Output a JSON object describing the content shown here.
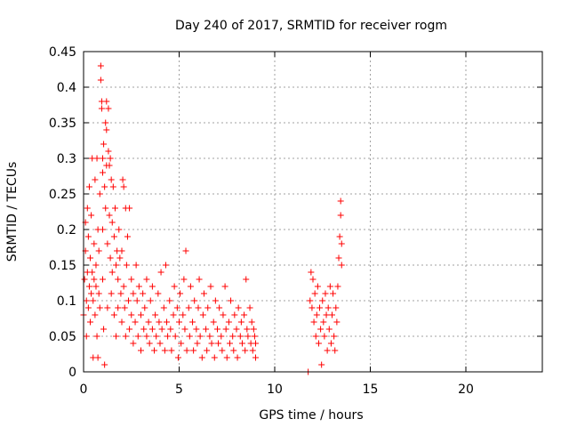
{
  "chart_data": {
    "type": "scatter",
    "title": "Day 240 of 2017, SRMTID for receiver rogm",
    "xlabel": "GPS time / hours",
    "ylabel": "SRMTID / TECUs",
    "xlim": [
      0,
      24
    ],
    "ylim": [
      0,
      0.45
    ],
    "grid": true,
    "marker": "+",
    "series_color": "#ff0000",
    "x_ticks": [
      0,
      5,
      10,
      15,
      20
    ],
    "x_tick_labels": [
      "0",
      "5",
      "10",
      "15",
      "20"
    ],
    "y_ticks": [
      0,
      0.05,
      0.1,
      0.15,
      0.2,
      0.25,
      0.3,
      0.35,
      0.4,
      0.45
    ],
    "y_tick_labels": [
      "0",
      "0.05",
      "0.1",
      "0.15",
      "0.2",
      "0.25",
      "0.3",
      "0.35",
      "0.4",
      "0.45"
    ],
    "series": [
      {
        "name": "SRMTID",
        "points": [
          [
            0.0,
            0.08
          ],
          [
            0.05,
            0.13
          ],
          [
            0.1,
            0.21
          ],
          [
            0.1,
            0.17
          ],
          [
            0.15,
            0.1
          ],
          [
            0.15,
            0.05
          ],
          [
            0.2,
            0.23
          ],
          [
            0.2,
            0.14
          ],
          [
            0.25,
            0.19
          ],
          [
            0.25,
            0.09
          ],
          [
            0.3,
            0.26
          ],
          [
            0.3,
            0.12
          ],
          [
            0.35,
            0.07
          ],
          [
            0.35,
            0.16
          ],
          [
            0.4,
            0.11
          ],
          [
            0.4,
            0.22
          ],
          [
            0.45,
            0.3
          ],
          [
            0.45,
            0.14
          ],
          [
            0.5,
            0.02
          ],
          [
            0.5,
            0.1
          ],
          [
            0.55,
            0.18
          ],
          [
            0.55,
            0.13
          ],
          [
            0.6,
            0.27
          ],
          [
            0.6,
            0.08
          ],
          [
            0.65,
            0.15
          ],
          [
            0.65,
            0.12
          ],
          [
            0.7,
            0.3
          ],
          [
            0.7,
            0.05
          ],
          [
            0.75,
            0.02
          ],
          [
            0.75,
            0.2
          ],
          [
            0.8,
            0.17
          ],
          [
            0.8,
            0.11
          ],
          [
            0.85,
            0.25
          ],
          [
            0.85,
            0.09
          ],
          [
            0.9,
            0.43
          ],
          [
            0.9,
            0.41
          ],
          [
            0.95,
            0.38
          ],
          [
            0.95,
            0.37
          ],
          [
            1.0,
            0.3
          ],
          [
            1.0,
            0.28
          ],
          [
            1.0,
            0.2
          ],
          [
            1.0,
            0.13
          ],
          [
            1.05,
            0.32
          ],
          [
            1.05,
            0.06
          ],
          [
            1.1,
            0.26
          ],
          [
            1.1,
            0.01
          ],
          [
            1.15,
            0.35
          ],
          [
            1.15,
            0.23
          ],
          [
            1.2,
            0.38
          ],
          [
            1.2,
            0.34
          ],
          [
            1.2,
            0.29
          ],
          [
            1.25,
            0.18
          ],
          [
            1.25,
            0.09
          ],
          [
            1.3,
            0.37
          ],
          [
            1.3,
            0.31
          ],
          [
            1.35,
            0.29
          ],
          [
            1.35,
            0.22
          ],
          [
            1.4,
            0.3
          ],
          [
            1.4,
            0.16
          ],
          [
            1.45,
            0.27
          ],
          [
            1.45,
            0.11
          ],
          [
            1.5,
            0.21
          ],
          [
            1.5,
            0.14
          ],
          [
            1.55,
            0.26
          ],
          [
            1.6,
            0.19
          ],
          [
            1.6,
            0.08
          ],
          [
            1.65,
            0.23
          ],
          [
            1.7,
            0.15
          ],
          [
            1.7,
            0.05
          ],
          [
            1.75,
            0.17
          ],
          [
            1.8,
            0.13
          ],
          [
            1.8,
            0.09
          ],
          [
            1.85,
            0.2
          ],
          [
            1.9,
            0.16
          ],
          [
            1.95,
            0.11
          ],
          [
            2.0,
            0.07
          ],
          [
            2.0,
            0.17
          ],
          [
            2.05,
            0.27
          ],
          [
            2.1,
            0.26
          ],
          [
            2.1,
            0.12
          ],
          [
            2.15,
            0.09
          ],
          [
            2.2,
            0.23
          ],
          [
            2.2,
            0.05
          ],
          [
            2.25,
            0.15
          ],
          [
            2.3,
            0.19
          ],
          [
            2.35,
            0.1
          ],
          [
            2.4,
            0.23
          ],
          [
            2.4,
            0.06
          ],
          [
            2.5,
            0.08
          ],
          [
            2.5,
            0.13
          ],
          [
            2.6,
            0.04
          ],
          [
            2.6,
            0.11
          ],
          [
            2.7,
            0.07
          ],
          [
            2.75,
            0.15
          ],
          [
            2.8,
            0.1
          ],
          [
            2.85,
            0.05
          ],
          [
            2.9,
            0.12
          ],
          [
            3.0,
            0.08
          ],
          [
            3.0,
            0.03
          ],
          [
            3.1,
            0.11
          ],
          [
            3.15,
            0.06
          ],
          [
            3.2,
            0.09
          ],
          [
            3.3,
            0.05
          ],
          [
            3.3,
            0.13
          ],
          [
            3.4,
            0.07
          ],
          [
            3.45,
            0.04
          ],
          [
            3.5,
            0.1
          ],
          [
            3.6,
            0.06
          ],
          [
            3.6,
            0.12
          ],
          [
            3.7,
            0.03
          ],
          [
            3.75,
            0.08
          ],
          [
            3.8,
            0.05
          ],
          [
            3.9,
            0.11
          ],
          [
            3.95,
            0.07
          ],
          [
            4.0,
            0.04
          ],
          [
            4.05,
            0.14
          ],
          [
            4.1,
            0.06
          ],
          [
            4.2,
            0.09
          ],
          [
            4.25,
            0.03
          ],
          [
            4.3,
            0.15
          ],
          [
            4.35,
            0.07
          ],
          [
            4.4,
            0.05
          ],
          [
            4.5,
            0.1
          ],
          [
            4.55,
            0.06
          ],
          [
            4.6,
            0.03
          ],
          [
            4.7,
            0.08
          ],
          [
            4.75,
            0.12
          ],
          [
            4.8,
            0.05
          ],
          [
            4.9,
            0.09
          ],
          [
            4.95,
            0.02
          ],
          [
            5.0,
            0.07
          ],
          [
            5.05,
            0.11
          ],
          [
            5.1,
            0.04
          ],
          [
            5.2,
            0.08
          ],
          [
            5.25,
            0.13
          ],
          [
            5.3,
            0.06
          ],
          [
            5.35,
            0.17
          ],
          [
            5.4,
            0.03
          ],
          [
            5.5,
            0.09
          ],
          [
            5.55,
            0.05
          ],
          [
            5.6,
            0.12
          ],
          [
            5.7,
            0.07
          ],
          [
            5.75,
            0.03
          ],
          [
            5.8,
            0.1
          ],
          [
            5.9,
            0.06
          ],
          [
            5.95,
            0.04
          ],
          [
            6.0,
            0.09
          ],
          [
            6.05,
            0.13
          ],
          [
            6.1,
            0.05
          ],
          [
            6.2,
            0.02
          ],
          [
            6.25,
            0.08
          ],
          [
            6.3,
            0.11
          ],
          [
            6.4,
            0.06
          ],
          [
            6.45,
            0.03
          ],
          [
            6.5,
            0.09
          ],
          [
            6.6,
            0.05
          ],
          [
            6.65,
            0.12
          ],
          [
            6.7,
            0.04
          ],
          [
            6.8,
            0.07
          ],
          [
            6.85,
            0.02
          ],
          [
            6.9,
            0.1
          ],
          [
            7.0,
            0.06
          ],
          [
            7.05,
            0.04
          ],
          [
            7.1,
            0.09
          ],
          [
            7.2,
            0.05
          ],
          [
            7.25,
            0.03
          ],
          [
            7.3,
            0.08
          ],
          [
            7.4,
            0.12
          ],
          [
            7.45,
            0.06
          ],
          [
            7.5,
            0.02
          ],
          [
            7.6,
            0.07
          ],
          [
            7.65,
            0.04
          ],
          [
            7.7,
            0.1
          ],
          [
            7.8,
            0.05
          ],
          [
            7.85,
            0.03
          ],
          [
            7.9,
            0.08
          ],
          [
            8.0,
            0.06
          ],
          [
            8.05,
            0.02
          ],
          [
            8.1,
            0.09
          ],
          [
            8.2,
            0.05
          ],
          [
            8.25,
            0.07
          ],
          [
            8.3,
            0.04
          ],
          [
            8.4,
            0.08
          ],
          [
            8.45,
            0.03
          ],
          [
            8.5,
            0.13
          ],
          [
            8.55,
            0.06
          ],
          [
            8.6,
            0.05
          ],
          [
            8.7,
            0.09
          ],
          [
            8.75,
            0.04
          ],
          [
            8.8,
            0.07
          ],
          [
            8.85,
            0.03
          ],
          [
            8.9,
            0.06
          ],
          [
            8.95,
            0.05
          ],
          [
            9.0,
            0.04
          ],
          [
            9.0,
            0.02
          ],
          [
            11.75,
            0.0
          ],
          [
            11.85,
            0.1
          ],
          [
            11.9,
            0.14
          ],
          [
            11.95,
            0.09
          ],
          [
            12.0,
            0.13
          ],
          [
            12.05,
            0.07
          ],
          [
            12.1,
            0.11
          ],
          [
            12.15,
            0.05
          ],
          [
            12.2,
            0.08
          ],
          [
            12.25,
            0.12
          ],
          [
            12.3,
            0.04
          ],
          [
            12.35,
            0.09
          ],
          [
            12.4,
            0.06
          ],
          [
            12.45,
            0.01
          ],
          [
            12.5,
            0.1
          ],
          [
            12.55,
            0.07
          ],
          [
            12.6,
            0.05
          ],
          [
            12.65,
            0.11
          ],
          [
            12.7,
            0.08
          ],
          [
            12.75,
            0.03
          ],
          [
            12.8,
            0.09
          ],
          [
            12.85,
            0.06
          ],
          [
            12.9,
            0.12
          ],
          [
            12.95,
            0.04
          ],
          [
            13.0,
            0.08
          ],
          [
            13.05,
            0.11
          ],
          [
            13.1,
            0.05
          ],
          [
            13.15,
            0.03
          ],
          [
            13.2,
            0.09
          ],
          [
            13.25,
            0.07
          ],
          [
            13.3,
            0.12
          ],
          [
            13.35,
            0.16
          ],
          [
            13.4,
            0.19
          ],
          [
            13.45,
            0.24
          ],
          [
            13.45,
            0.22
          ],
          [
            13.5,
            0.15
          ],
          [
            13.5,
            0.18
          ]
        ]
      }
    ]
  }
}
